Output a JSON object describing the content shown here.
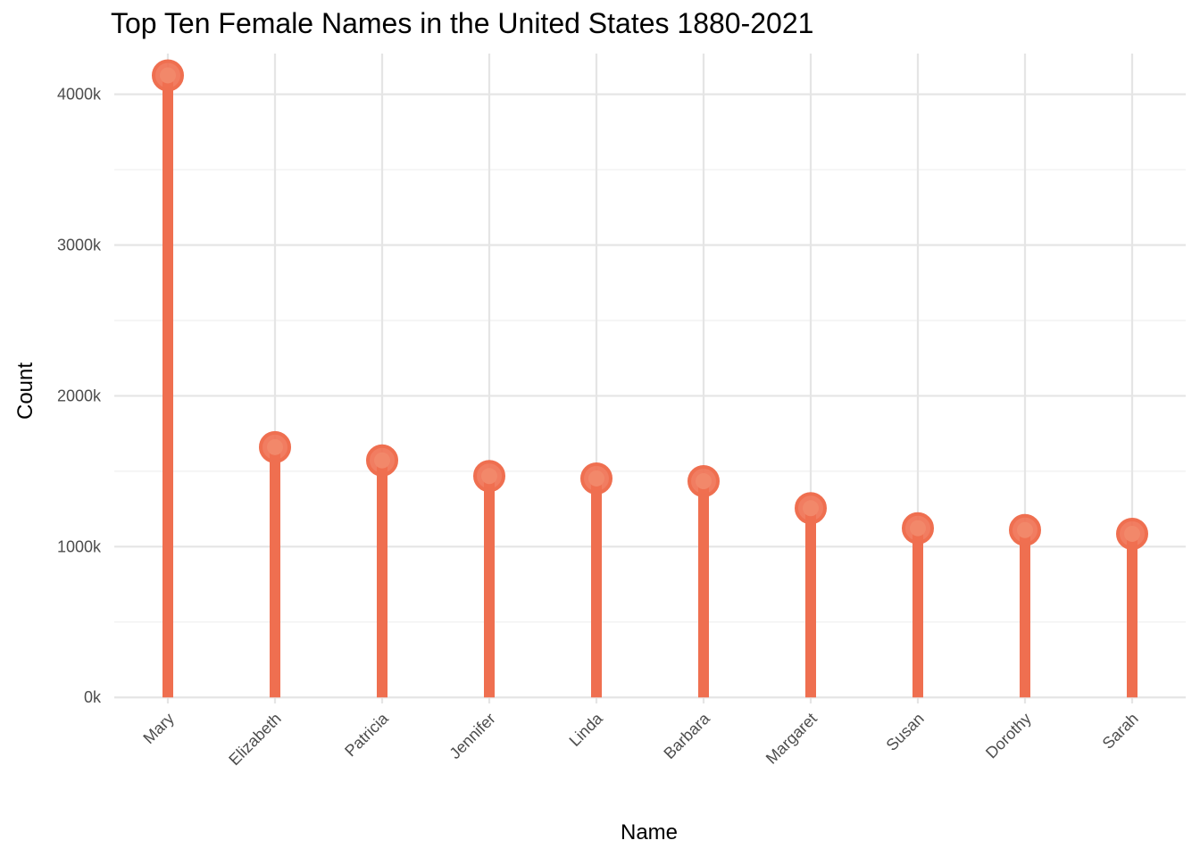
{
  "chart_data": {
    "type": "lollipop",
    "title": "Top Ten Female Names in the United States 1880-2021",
    "xlabel": "Name",
    "ylabel": "Count",
    "categories": [
      "Mary",
      "Elizabeth",
      "Patricia",
      "Jennifer",
      "Linda",
      "Barbara",
      "Margaret",
      "Susan",
      "Dorothy",
      "Sarah"
    ],
    "values": [
      4125000,
      1660000,
      1572000,
      1468000,
      1452000,
      1434000,
      1255000,
      1122000,
      1110000,
      1085000
    ],
    "ylim": [
      -40000,
      4270000
    ],
    "y_ticks": [
      0,
      1000000,
      2000000,
      3000000,
      4000000
    ],
    "y_tick_labels": [
      "0k",
      "1000k",
      "2000k",
      "3000k",
      "4000k"
    ],
    "grid": true,
    "color": "#EF6F50"
  }
}
